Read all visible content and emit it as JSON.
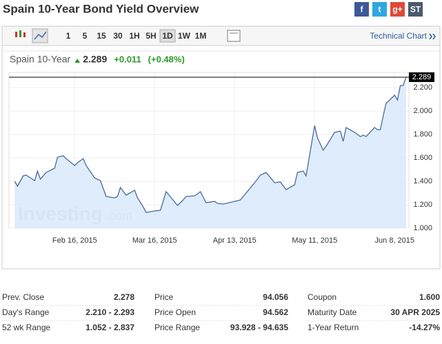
{
  "header": {
    "title": "Spain 10-Year Bond Yield Overview",
    "social": [
      "f",
      "t",
      "g+",
      "ST"
    ]
  },
  "toolbar": {
    "intervals": [
      "1",
      "5",
      "15",
      "30",
      "1H",
      "5H",
      "1D",
      "1W",
      "1M"
    ],
    "technical_chart": "Technical Chart"
  },
  "quote": {
    "name": "Spain 10-Year",
    "last": "2.289",
    "change": "+0.011",
    "change_pct": "(+0.48%)"
  },
  "watermark": {
    "brand": "Investing",
    "suffix": ".com"
  },
  "chart_data": {
    "type": "line",
    "color": "#4a6a9a",
    "fill": "#d8e9fb",
    "grid": true,
    "x": [
      "2015-01-26",
      "2015-01-27",
      "2015-01-29",
      "2015-01-30",
      "2015-02-02",
      "2015-02-03",
      "2015-02-04",
      "2015-02-06",
      "2015-02-09",
      "2015-02-10",
      "2015-02-12",
      "2015-02-13",
      "2015-02-16",
      "2015-02-17",
      "2015-02-19",
      "2015-02-20",
      "2015-02-23",
      "2015-02-25",
      "2015-02-27",
      "2015-03-02",
      "2015-03-03",
      "2015-03-04",
      "2015-03-06",
      "2015-03-09",
      "2015-03-10",
      "2015-03-12",
      "2015-03-13",
      "2015-03-16",
      "2015-03-18",
      "2015-03-20",
      "2015-03-24",
      "2015-03-26",
      "2015-03-27",
      "2015-03-30",
      "2015-04-01",
      "2015-04-03",
      "2015-04-06",
      "2015-04-07",
      "2015-04-09",
      "2015-04-13",
      "2015-04-15",
      "2015-04-17",
      "2015-04-20",
      "2015-04-22",
      "2015-04-24",
      "2015-04-27",
      "2015-04-29",
      "2015-05-01",
      "2015-05-04",
      "2015-05-05",
      "2015-05-07",
      "2015-05-08",
      "2015-05-11",
      "2015-05-12",
      "2015-05-14",
      "2015-05-15",
      "2015-05-18",
      "2015-05-20",
      "2015-05-21",
      "2015-05-22",
      "2015-05-25",
      "2015-05-27",
      "2015-05-28",
      "2015-05-29",
      "2015-06-01",
      "2015-06-02",
      "2015-06-03",
      "2015-06-04",
      "2015-06-05",
      "2015-06-08",
      "2015-06-09",
      "2015-06-10",
      "2015-06-11",
      "2015-06-12"
    ],
    "values": [
      1.4,
      1.359,
      1.447,
      1.453,
      1.406,
      1.488,
      1.418,
      1.476,
      1.512,
      1.606,
      1.618,
      1.594,
      1.535,
      1.559,
      1.594,
      1.535,
      1.429,
      1.406,
      1.271,
      1.259,
      1.271,
      1.347,
      1.282,
      1.324,
      1.259,
      1.182,
      1.135,
      1.147,
      1.153,
      1.312,
      1.194,
      1.241,
      1.271,
      1.276,
      1.312,
      1.218,
      1.229,
      1.212,
      1.206,
      1.229,
      1.241,
      1.3,
      1.388,
      1.453,
      1.476,
      1.388,
      1.394,
      1.329,
      1.371,
      1.476,
      1.488,
      1.447,
      1.876,
      1.771,
      1.665,
      1.7,
      1.818,
      1.829,
      1.741,
      1.859,
      1.818,
      1.782,
      1.794,
      1.782,
      1.859,
      1.841,
      1.841,
      1.959,
      2.065,
      2.135,
      2.094,
      2.218,
      2.218,
      2.289
    ],
    "xlim": [
      "2015-01-24",
      "2015-06-13"
    ],
    "xticks": [
      {
        "value": "2015-02-16",
        "label": "Feb 16, 2015"
      },
      {
        "value": "2015-03-16",
        "label": "Mar 16, 2015"
      },
      {
        "value": "2015-04-13",
        "label": "Apr 13, 2015"
      },
      {
        "value": "2015-05-11",
        "label": "May 11, 2015"
      },
      {
        "value": "2015-06-08",
        "label": "Jun 8, 2015"
      }
    ],
    "ylim": [
      1.0,
      2.33
    ],
    "yticks": [
      {
        "value": 1.0,
        "label": "1.000"
      },
      {
        "value": 1.2,
        "label": "1.200"
      },
      {
        "value": 1.4,
        "label": "1.400"
      },
      {
        "value": 1.6,
        "label": "1.600"
      },
      {
        "value": 1.8,
        "label": "1.800"
      },
      {
        "value": 2.0,
        "label": "2.000"
      },
      {
        "value": 2.2,
        "label": "2.200"
      }
    ],
    "last_label": "2.289"
  },
  "stats": [
    [
      [
        "Prev. Close",
        "2.278"
      ],
      [
        "Day's Range",
        "2.210 - 2.293"
      ],
      [
        "52 wk Range",
        "1.052 - 2.837"
      ]
    ],
    [
      [
        "Price",
        "94.056"
      ],
      [
        "Price Open",
        "94.562"
      ],
      [
        "Price Range",
        "93.928 - 94.635"
      ]
    ],
    [
      [
        "Coupon",
        "1.600"
      ],
      [
        "Maturity Date",
        "30 APR 2025"
      ],
      [
        "1-Year Return",
        "-14.27%"
      ]
    ]
  ]
}
